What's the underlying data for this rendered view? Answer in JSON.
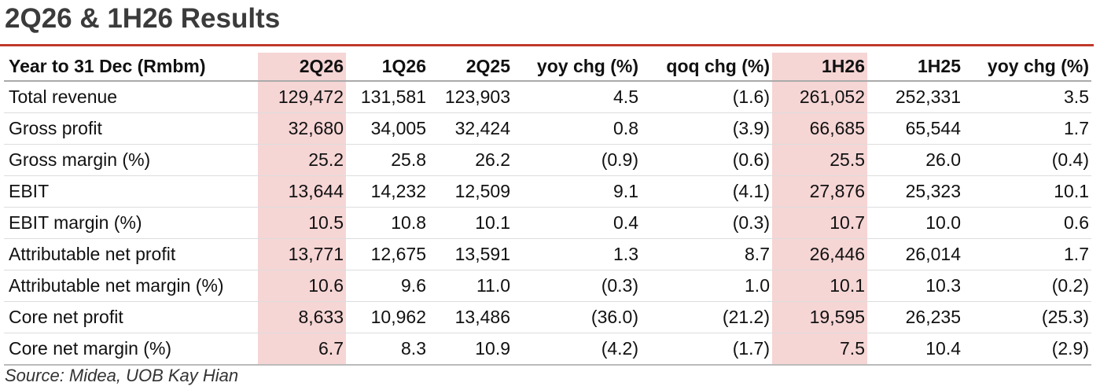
{
  "header": {
    "title": "2Q26 & 1H26 Results"
  },
  "table": {
    "columns": [
      "Year to 31 Dec (Rmbm)",
      "2Q26",
      "1Q26",
      "2Q25",
      "yoy chg (%)",
      "qoq chg (%)",
      "1H26",
      "1H25",
      "yoy chg (%)"
    ],
    "rows": [
      [
        "Total revenue",
        "129,472",
        "131,581",
        "123,903",
        "4.5",
        "(1.6)",
        "261,052",
        "252,331",
        "3.5"
      ],
      [
        "Gross profit",
        "32,680",
        "34,005",
        "32,424",
        "0.8",
        "(3.9)",
        "66,685",
        "65,544",
        "1.7"
      ],
      [
        "Gross margin (%)",
        "25.2",
        "25.8",
        "26.2",
        "(0.9)",
        "(0.6)",
        "25.5",
        "26.0",
        "(0.4)"
      ],
      [
        "EBIT",
        "13,644",
        "14,232",
        "12,509",
        "9.1",
        "(4.1)",
        "27,876",
        "25,323",
        "10.1"
      ],
      [
        "EBIT margin (%)",
        "10.5",
        "10.8",
        "10.1",
        "0.4",
        "(0.3)",
        "10.7",
        "10.0",
        "0.6"
      ],
      [
        "Attributable net profit",
        "13,771",
        "12,675",
        "13,591",
        "1.3",
        "8.7",
        "26,446",
        "26,014",
        "1.7"
      ],
      [
        "Attributable net margin (%)",
        "10.6",
        "9.6",
        "11.0",
        "(0.3)",
        "1.0",
        "10.1",
        "10.3",
        "(0.2)"
      ],
      [
        "Core net profit",
        "8,633",
        "10,962",
        "13,486",
        "(36.0)",
        "(21.2)",
        "19,595",
        "26,235",
        "(25.3)"
      ],
      [
        "Core net margin (%)",
        "6.7",
        "8.3",
        "10.9",
        "(4.2)",
        "(1.7)",
        "7.5",
        "10.4",
        "(2.9)"
      ]
    ]
  },
  "source": "Source: Midea, UOB Kay Hian"
}
